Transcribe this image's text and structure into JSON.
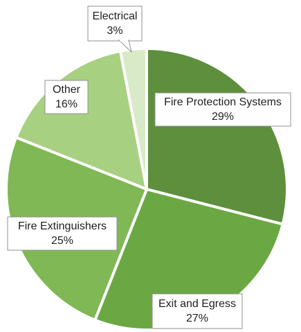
{
  "chart_data": {
    "type": "pie",
    "slices": [
      {
        "label": "Fire Protection Systems",
        "value": 29,
        "value_label": "29%",
        "color": "#5e8f3d"
      },
      {
        "label": "Exit and Egress",
        "value": 27,
        "value_label": "27%",
        "color": "#6ba843"
      },
      {
        "label": "Fire Extinguishers",
        "value": 25,
        "value_label": "25%",
        "color": "#7fb854"
      },
      {
        "label": "Other",
        "value": 16,
        "value_label": "16%",
        "color": "#a8d081"
      },
      {
        "label": "Electrical",
        "value": 3,
        "value_label": "3%",
        "color": "#d8eac7"
      }
    ],
    "legend": "none"
  }
}
